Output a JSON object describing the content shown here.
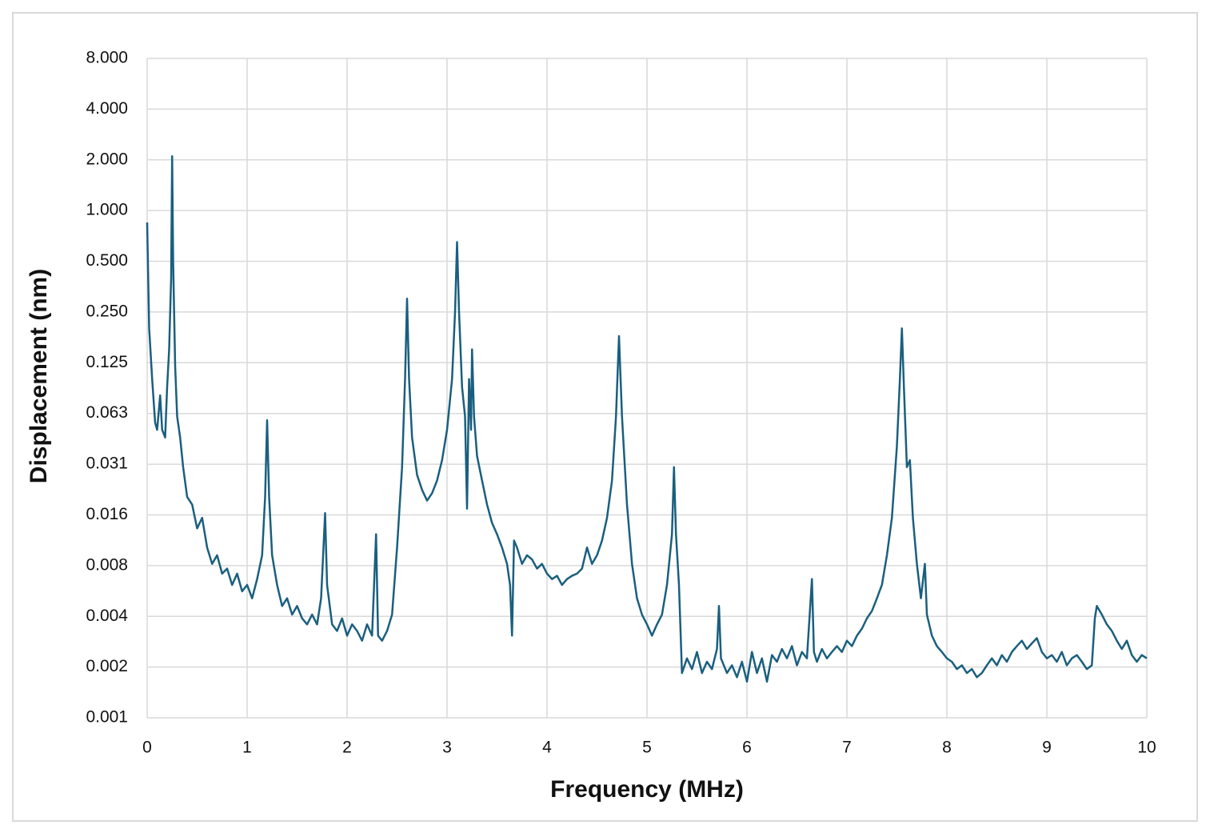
{
  "chart_data": {
    "type": "line",
    "xlabel": "Frequency (MHz)",
    "ylabel": "Displacement (nm)",
    "xlim": [
      0,
      10
    ],
    "xticks": [
      0,
      1,
      2,
      3,
      4,
      5,
      6,
      7,
      8,
      9,
      10
    ],
    "ylim": [
      0.0009765625,
      8
    ],
    "yscale": "log",
    "grid": true,
    "yticks": [
      {
        "value": 0.0009765625,
        "label": "0.001"
      },
      {
        "value": 0.001953125,
        "label": "0.002"
      },
      {
        "value": 0.00390625,
        "label": "0.004"
      },
      {
        "value": 0.0078125,
        "label": "0.008"
      },
      {
        "value": 0.015625,
        "label": "0.016"
      },
      {
        "value": 0.03125,
        "label": "0.031"
      },
      {
        "value": 0.0625,
        "label": "0.063"
      },
      {
        "value": 0.125,
        "label": "0.125"
      },
      {
        "value": 0.25,
        "label": "0.250"
      },
      {
        "value": 0.5,
        "label": "0.500"
      },
      {
        "value": 1,
        "label": "1.000"
      },
      {
        "value": 2,
        "label": "2.000"
      },
      {
        "value": 4,
        "label": "4.000"
      },
      {
        "value": 8,
        "label": "8.000"
      }
    ],
    "x": [
      0,
      0.02,
      0.05,
      0.08,
      0.1,
      0.13,
      0.15,
      0.18,
      0.2,
      0.22,
      0.24,
      0.25,
      0.26,
      0.28,
      0.3,
      0.33,
      0.36,
      0.4,
      0.45,
      0.5,
      0.55,
      0.6,
      0.65,
      0.7,
      0.75,
      0.8,
      0.85,
      0.9,
      0.95,
      1.0,
      1.05,
      1.1,
      1.15,
      1.18,
      1.2,
      1.22,
      1.25,
      1.3,
      1.35,
      1.4,
      1.45,
      1.5,
      1.55,
      1.6,
      1.65,
      1.7,
      1.74,
      1.78,
      1.8,
      1.85,
      1.9,
      1.95,
      2.0,
      2.05,
      2.1,
      2.15,
      2.2,
      2.25,
      2.29,
      2.31,
      2.35,
      2.4,
      2.45,
      2.5,
      2.55,
      2.58,
      2.6,
      2.62,
      2.65,
      2.7,
      2.75,
      2.8,
      2.85,
      2.9,
      2.95,
      3.0,
      3.05,
      3.08,
      3.1,
      3.12,
      3.15,
      3.18,
      3.2,
      3.22,
      3.24,
      3.25,
      3.27,
      3.3,
      3.35,
      3.4,
      3.45,
      3.5,
      3.55,
      3.6,
      3.63,
      3.65,
      3.67,
      3.7,
      3.75,
      3.8,
      3.85,
      3.9,
      3.95,
      4.0,
      4.05,
      4.1,
      4.15,
      4.2,
      4.25,
      4.3,
      4.35,
      4.4,
      4.45,
      4.5,
      4.55,
      4.6,
      4.65,
      4.69,
      4.72,
      4.75,
      4.8,
      4.85,
      4.9,
      4.95,
      5.0,
      5.05,
      5.1,
      5.15,
      5.2,
      5.25,
      5.27,
      5.29,
      5.32,
      5.35,
      5.4,
      5.45,
      5.5,
      5.55,
      5.6,
      5.65,
      5.7,
      5.72,
      5.74,
      5.8,
      5.85,
      5.9,
      5.95,
      6.0,
      6.05,
      6.1,
      6.15,
      6.2,
      6.25,
      6.3,
      6.35,
      6.4,
      6.45,
      6.5,
      6.55,
      6.6,
      6.65,
      6.67,
      6.7,
      6.75,
      6.8,
      6.85,
      6.9,
      6.95,
      7.0,
      7.05,
      7.1,
      7.15,
      7.2,
      7.25,
      7.3,
      7.35,
      7.4,
      7.45,
      7.5,
      7.53,
      7.55,
      7.57,
      7.6,
      7.63,
      7.66,
      7.7,
      7.74,
      7.78,
      7.8,
      7.85,
      7.9,
      7.95,
      8.0,
      8.05,
      8.1,
      8.15,
      8.2,
      8.25,
      8.3,
      8.35,
      8.4,
      8.45,
      8.5,
      8.55,
      8.6,
      8.65,
      8.7,
      8.75,
      8.8,
      8.85,
      8.9,
      8.95,
      9.0,
      9.05,
      9.1,
      9.15,
      9.2,
      9.25,
      9.3,
      9.35,
      9.4,
      9.45,
      9.48,
      9.5,
      9.55,
      9.6,
      9.65,
      9.7,
      9.75,
      9.8,
      9.85,
      9.9,
      9.95,
      10.0
    ],
    "series": [
      {
        "color": "#1a5f7f",
        "values": [
          0.85,
          0.2,
          0.1,
          0.055,
          0.05,
          0.08,
          0.05,
          0.045,
          0.09,
          0.15,
          0.4,
          2.1,
          0.5,
          0.12,
          0.06,
          0.045,
          0.03,
          0.02,
          0.018,
          0.013,
          0.015,
          0.01,
          0.008,
          0.009,
          0.007,
          0.0075,
          0.006,
          0.007,
          0.0055,
          0.006,
          0.005,
          0.0065,
          0.009,
          0.02,
          0.057,
          0.02,
          0.009,
          0.006,
          0.0045,
          0.005,
          0.004,
          0.0045,
          0.0038,
          0.0035,
          0.004,
          0.0035,
          0.005,
          0.016,
          0.006,
          0.0035,
          0.0032,
          0.0038,
          0.003,
          0.0035,
          0.0032,
          0.0028,
          0.0035,
          0.003,
          0.012,
          0.003,
          0.0028,
          0.0032,
          0.004,
          0.01,
          0.03,
          0.1,
          0.3,
          0.1,
          0.045,
          0.027,
          0.022,
          0.019,
          0.021,
          0.025,
          0.033,
          0.05,
          0.1,
          0.25,
          0.65,
          0.25,
          0.09,
          0.06,
          0.017,
          0.1,
          0.05,
          0.15,
          0.06,
          0.035,
          0.025,
          0.018,
          0.014,
          0.012,
          0.01,
          0.008,
          0.006,
          0.003,
          0.011,
          0.01,
          0.008,
          0.009,
          0.0085,
          0.0075,
          0.008,
          0.007,
          0.0065,
          0.0068,
          0.006,
          0.0065,
          0.0068,
          0.007,
          0.0075,
          0.01,
          0.008,
          0.009,
          0.011,
          0.015,
          0.025,
          0.06,
          0.18,
          0.06,
          0.018,
          0.008,
          0.005,
          0.004,
          0.0035,
          0.003,
          0.0035,
          0.004,
          0.006,
          0.012,
          0.03,
          0.012,
          0.006,
          0.0018,
          0.0022,
          0.0019,
          0.0024,
          0.0018,
          0.0021,
          0.0019,
          0.0025,
          0.0045,
          0.0022,
          0.0018,
          0.002,
          0.0017,
          0.0021,
          0.0016,
          0.0024,
          0.0018,
          0.0022,
          0.0016,
          0.0023,
          0.0021,
          0.0025,
          0.0022,
          0.0026,
          0.002,
          0.0024,
          0.0022,
          0.0065,
          0.0024,
          0.0021,
          0.0025,
          0.0022,
          0.0024,
          0.0026,
          0.0024,
          0.0028,
          0.0026,
          0.003,
          0.0033,
          0.0038,
          0.0042,
          0.005,
          0.006,
          0.009,
          0.015,
          0.04,
          0.1,
          0.2,
          0.09,
          0.03,
          0.033,
          0.015,
          0.008,
          0.005,
          0.008,
          0.004,
          0.003,
          0.0026,
          0.0024,
          0.0022,
          0.0021,
          0.0019,
          0.002,
          0.0018,
          0.0019,
          0.0017,
          0.0018,
          0.002,
          0.0022,
          0.002,
          0.0023,
          0.0021,
          0.0024,
          0.0026,
          0.0028,
          0.0025,
          0.0027,
          0.0029,
          0.0024,
          0.0022,
          0.0023,
          0.0021,
          0.0024,
          0.002,
          0.0022,
          0.0023,
          0.0021,
          0.0019,
          0.002,
          0.0038,
          0.0045,
          0.004,
          0.0035,
          0.0032,
          0.0028,
          0.0025,
          0.0028,
          0.0023,
          0.0021,
          0.0023,
          0.0022
        ]
      }
    ]
  }
}
